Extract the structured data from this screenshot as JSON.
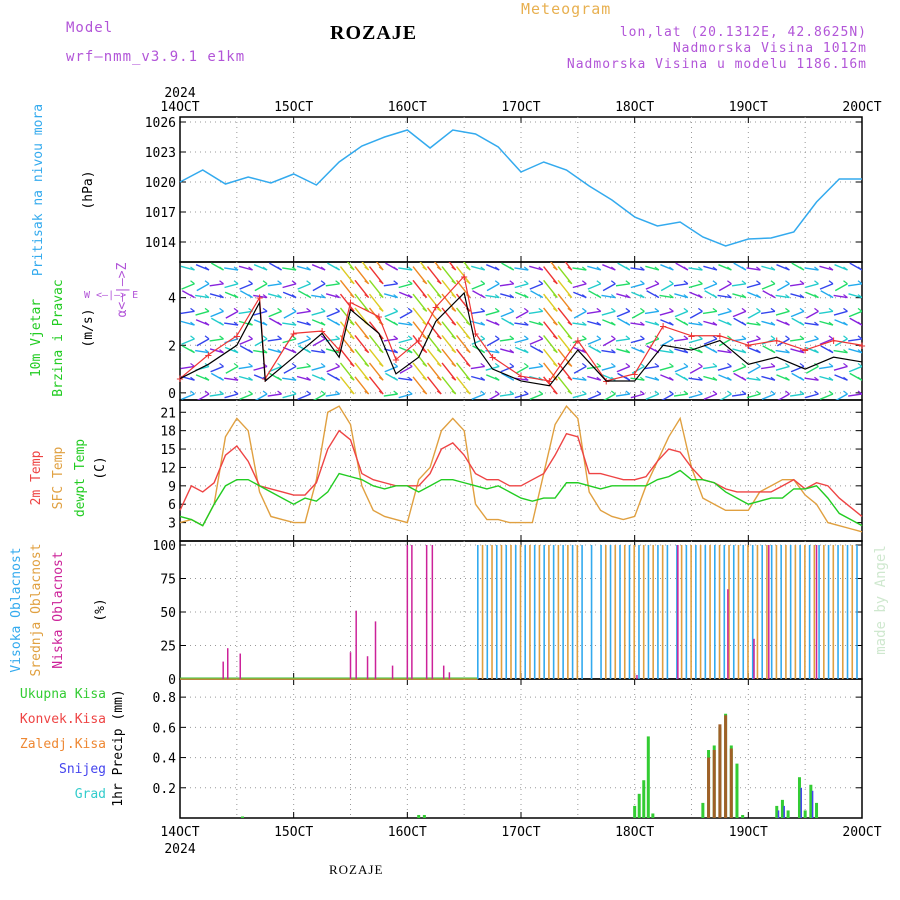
{
  "header": {
    "model_label": "Model",
    "model_name": "wrf—nmm_v3.9.1  e1km",
    "station": "ROZAJE",
    "meteogram": "Meteogram",
    "lonlat": "lon,lat (20.1312E, 42.8625N)",
    "elevation": "Nadmorska Visina 1012m",
    "model_elevation": "Nadmorska Visina u modelu 1186.16m"
  },
  "footer": {
    "station": "ROZAJE",
    "credit": "made by Angel"
  },
  "x_axis": {
    "year": "2024",
    "ticks": [
      "14OCT",
      "15OCT",
      "16OCT",
      "17OCT",
      "18OCT",
      "19OCT",
      "20OCT"
    ]
  },
  "panels": {
    "pressure": {
      "label": "Pritisak na nivou mora",
      "unit": "(hPa)"
    },
    "wind": {
      "label1": "10m Vjetar",
      "label2": "Brzina i Pravac",
      "unit": "(m/s)",
      "compass_v": "α<—|—>Z",
      "compass_h": "W <—|—> E"
    },
    "temp": {
      "label1": "2m Temp",
      "label2": "SFC Temp",
      "label3": "dewpt Temp",
      "unit": "(C)"
    },
    "cloud": {
      "label1": "Visoka Oblacnost",
      "label2": "Srednja Oblacnost",
      "label3": "Niska Oblacnost",
      "unit": "(%)"
    },
    "precip": {
      "legend": [
        "Ukupna Kisa",
        "Konvek.Kisa",
        "Zaledj.Kisa",
        "Snijeg",
        "Grad"
      ],
      "ylabel": "1hr Precip (mm)"
    }
  },
  "colors": {
    "pressure": "#33aaee",
    "wind_speed": "#000000",
    "wind_gust": "#ee3333",
    "temp2m": "#ee4444",
    "sfc": "#e0a040",
    "dewpt": "#22cc22",
    "high_cloud": "#33aaee",
    "mid_cloud": "#e0a040",
    "low_cloud": "#cc2299",
    "total_rain": "#33cc33",
    "conv_rain": "#ee4444",
    "freezing_rain": "#ee8833",
    "snow": "#4444ee",
    "hail": "#33cccc"
  },
  "chart_data": [
    {
      "type": "line",
      "name": "pressure",
      "x_unit": "days since 14OCT 00UTC",
      "x": [
        0,
        0.2,
        0.4,
        0.6,
        0.8,
        1.0,
        1.2,
        1.4,
        1.6,
        1.8,
        2.0,
        2.2,
        2.4,
        2.6,
        2.8,
        3.0,
        3.2,
        3.4,
        3.6,
        3.8,
        4.0,
        4.2,
        4.4,
        4.6,
        4.8,
        5.0,
        5.2,
        5.4,
        5.6,
        5.8,
        6.0
      ],
      "series": [
        {
          "values": [
            1020,
            1021.2,
            1019.8,
            1020.5,
            1019.9,
            1020.8,
            1019.7,
            1022,
            1023.6,
            1024.5,
            1025.2,
            1023.4,
            1025.2,
            1024.8,
            1023.5,
            1021,
            1022,
            1021.2,
            1019.6,
            1018.2,
            1016.5,
            1015.6,
            1016,
            1014.5,
            1013.6,
            1014.3,
            1014.4,
            1015,
            1018,
            1020.3,
            1020.3
          ]
        }
      ],
      "ylabel": "(hPa)",
      "ylim": [
        1012,
        1026.5
      ],
      "yticks": [
        1014,
        1017,
        1020,
        1023,
        1026
      ]
    },
    {
      "type": "line",
      "name": "wind",
      "x": [
        0,
        0.25,
        0.5,
        0.7,
        0.75,
        1.0,
        1.25,
        1.4,
        1.5,
        1.75,
        1.9,
        2.1,
        2.25,
        2.5,
        2.6,
        2.75,
        3.0,
        3.25,
        3.5,
        3.75,
        4.0,
        4.25,
        4.5,
        4.75,
        5.0,
        5.25,
        5.5,
        5.75,
        6.0
      ],
      "series": [
        {
          "name": "speed",
          "values": [
            0.6,
            1.2,
            2,
            3.8,
            0.5,
            1.5,
            2.5,
            1.5,
            3.5,
            2.5,
            0.8,
            1.5,
            3,
            4.2,
            2,
            1,
            0.5,
            0.3,
            1.8,
            0.5,
            0.5,
            2,
            1.8,
            2.2,
            1.2,
            1.5,
            1.0,
            1.5,
            1.3
          ]
        },
        {
          "name": "gust",
          "values": [
            0.6,
            1.6,
            2.4,
            4.0,
            0.6,
            2.5,
            2.6,
            1.8,
            3.8,
            3.2,
            1.4,
            2.2,
            3.6,
            4.9,
            2.5,
            1.5,
            0.7,
            0.5,
            2.2,
            0.5,
            0.8,
            2.8,
            2.4,
            2.4,
            2.0,
            2.2,
            1.8,
            2.2,
            2.0
          ]
        }
      ],
      "ylabel": "(m/s)",
      "ylim": [
        -0.3,
        5.5
      ],
      "yticks": [
        0,
        2,
        4
      ]
    },
    {
      "type": "line",
      "name": "temperature",
      "x": [
        0,
        0.1,
        0.2,
        0.3,
        0.4,
        0.5,
        0.6,
        0.7,
        0.8,
        0.9,
        1.0,
        1.1,
        1.2,
        1.3,
        1.4,
        1.5,
        1.6,
        1.7,
        1.8,
        1.9,
        2.0,
        2.1,
        2.2,
        2.3,
        2.4,
        2.5,
        2.6,
        2.7,
        2.8,
        2.9,
        3.0,
        3.1,
        3.2,
        3.3,
        3.4,
        3.5,
        3.6,
        3.7,
        3.8,
        3.9,
        4.0,
        4.1,
        4.2,
        4.3,
        4.4,
        4.5,
        4.6,
        4.7,
        4.8,
        4.9,
        5.0,
        5.1,
        5.2,
        5.3,
        5.4,
        5.5,
        5.6,
        5.7,
        5.8,
        5.9,
        6.0
      ],
      "series": [
        {
          "name": "2m",
          "values": [
            5,
            9,
            8,
            9.5,
            14,
            15.5,
            13,
            9,
            8.5,
            8,
            7.5,
            7.5,
            9.5,
            15,
            18,
            16.5,
            11,
            10,
            9.5,
            9,
            9,
            9,
            11,
            15,
            16,
            14,
            11,
            10,
            10,
            9,
            9,
            10,
            11,
            14,
            17.5,
            17,
            11,
            11,
            10.5,
            10,
            10,
            10.5,
            13,
            15,
            14.5,
            12,
            10,
            9.5,
            8.5,
            8,
            8,
            8,
            8,
            9,
            10,
            8.5,
            9.5,
            9,
            7,
            5.5,
            4
          ]
        },
        {
          "name": "sfc",
          "values": [
            3,
            3.5,
            2.5,
            6,
            17,
            20,
            18,
            8,
            4,
            3.5,
            3,
            3,
            10,
            21,
            22,
            19,
            9,
            5,
            4,
            3.5,
            3,
            10,
            12,
            18,
            20,
            18,
            6,
            3.5,
            3.5,
            3,
            3,
            3,
            11,
            19,
            22,
            20,
            8,
            5,
            4,
            3.5,
            4,
            9,
            13,
            17,
            20,
            12,
            7,
            6,
            5,
            5,
            5,
            8,
            9,
            10,
            10,
            7.5,
            6,
            3,
            2.5,
            2,
            1.5
          ]
        },
        {
          "name": "dewpt",
          "values": [
            4,
            3.5,
            2.5,
            6,
            9,
            10,
            10,
            9,
            8,
            7,
            6,
            7,
            6.5,
            8,
            11,
            10.5,
            10,
            9,
            8.5,
            9,
            9,
            8,
            9,
            10,
            10,
            9.5,
            9,
            8.5,
            9,
            8,
            7,
            6.5,
            7,
            7,
            9.5,
            9.5,
            9,
            8.5,
            9,
            9,
            9,
            9,
            10,
            10.5,
            11.5,
            10,
            10,
            9.5,
            8,
            7,
            6,
            6.5,
            7,
            7,
            8.5,
            8.5,
            9,
            7,
            4.5,
            3.5,
            2.5
          ]
        }
      ],
      "ylabel": "(C)",
      "ylim": [
        0,
        23
      ],
      "yticks": [
        3,
        6,
        9,
        12,
        15,
        18,
        21
      ]
    },
    {
      "type": "bar",
      "name": "cloud_cover",
      "note": "Low cloud spikes before 16.5 OCT; dense high/mid cloud bars thereafter",
      "series": [
        {
          "name": "low",
          "x": [
            0.38,
            0.42,
            0.53,
            1.5,
            1.55,
            1.65,
            1.72,
            1.87,
            2.0,
            2.04,
            2.17,
            2.22,
            2.32,
            2.37
          ],
          "values": [
            13,
            23,
            19,
            20,
            51,
            17,
            43,
            10,
            100,
            100,
            100,
            100,
            10,
            5
          ]
        },
        {
          "name": "high",
          "x_range": [
            2.62,
            6.0
          ],
          "values": "mostly 100"
        },
        {
          "name": "mid",
          "x_range": [
            2.8,
            5.9
          ],
          "values": "mostly 100"
        }
      ],
      "ylabel": "(%)",
      "ylim": [
        0,
        103
      ],
      "yticks": [
        0,
        25,
        50,
        75,
        100
      ]
    },
    {
      "type": "bar",
      "name": "precip",
      "series": [
        {
          "name": "total",
          "x": [
            0.55,
            2.1,
            2.15,
            4.0,
            4.04,
            4.08,
            4.12,
            4.16,
            4.6,
            4.65,
            4.7,
            4.75,
            4.8,
            4.85,
            4.9,
            4.95,
            5.25,
            5.3,
            5.35,
            5.45,
            5.5,
            5.55,
            5.6
          ],
          "values": [
            0.01,
            0.02,
            0.02,
            0.08,
            0.16,
            0.25,
            0.54,
            0.03,
            0.1,
            0.45,
            0.48,
            0.6,
            0.69,
            0.48,
            0.36,
            0.02,
            0.08,
            0.12,
            0.05,
            0.27,
            0.05,
            0.22,
            0.1
          ]
        },
        {
          "name": "conv",
          "x": [
            4.65,
            4.7,
            4.75,
            4.8,
            4.85
          ],
          "values": [
            0.4,
            0.45,
            0.62,
            0.68,
            0.46
          ]
        },
        {
          "name": "snow",
          "x": [
            5.25,
            5.3,
            5.45,
            5.55
          ],
          "values": [
            0.05,
            0.08,
            0.2,
            0.18
          ]
        }
      ],
      "ylabel": "1hr Precip (mm)",
      "ylim": [
        0,
        0.92
      ],
      "yticks": [
        0.2,
        0.4,
        0.6,
        0.8
      ]
    }
  ]
}
